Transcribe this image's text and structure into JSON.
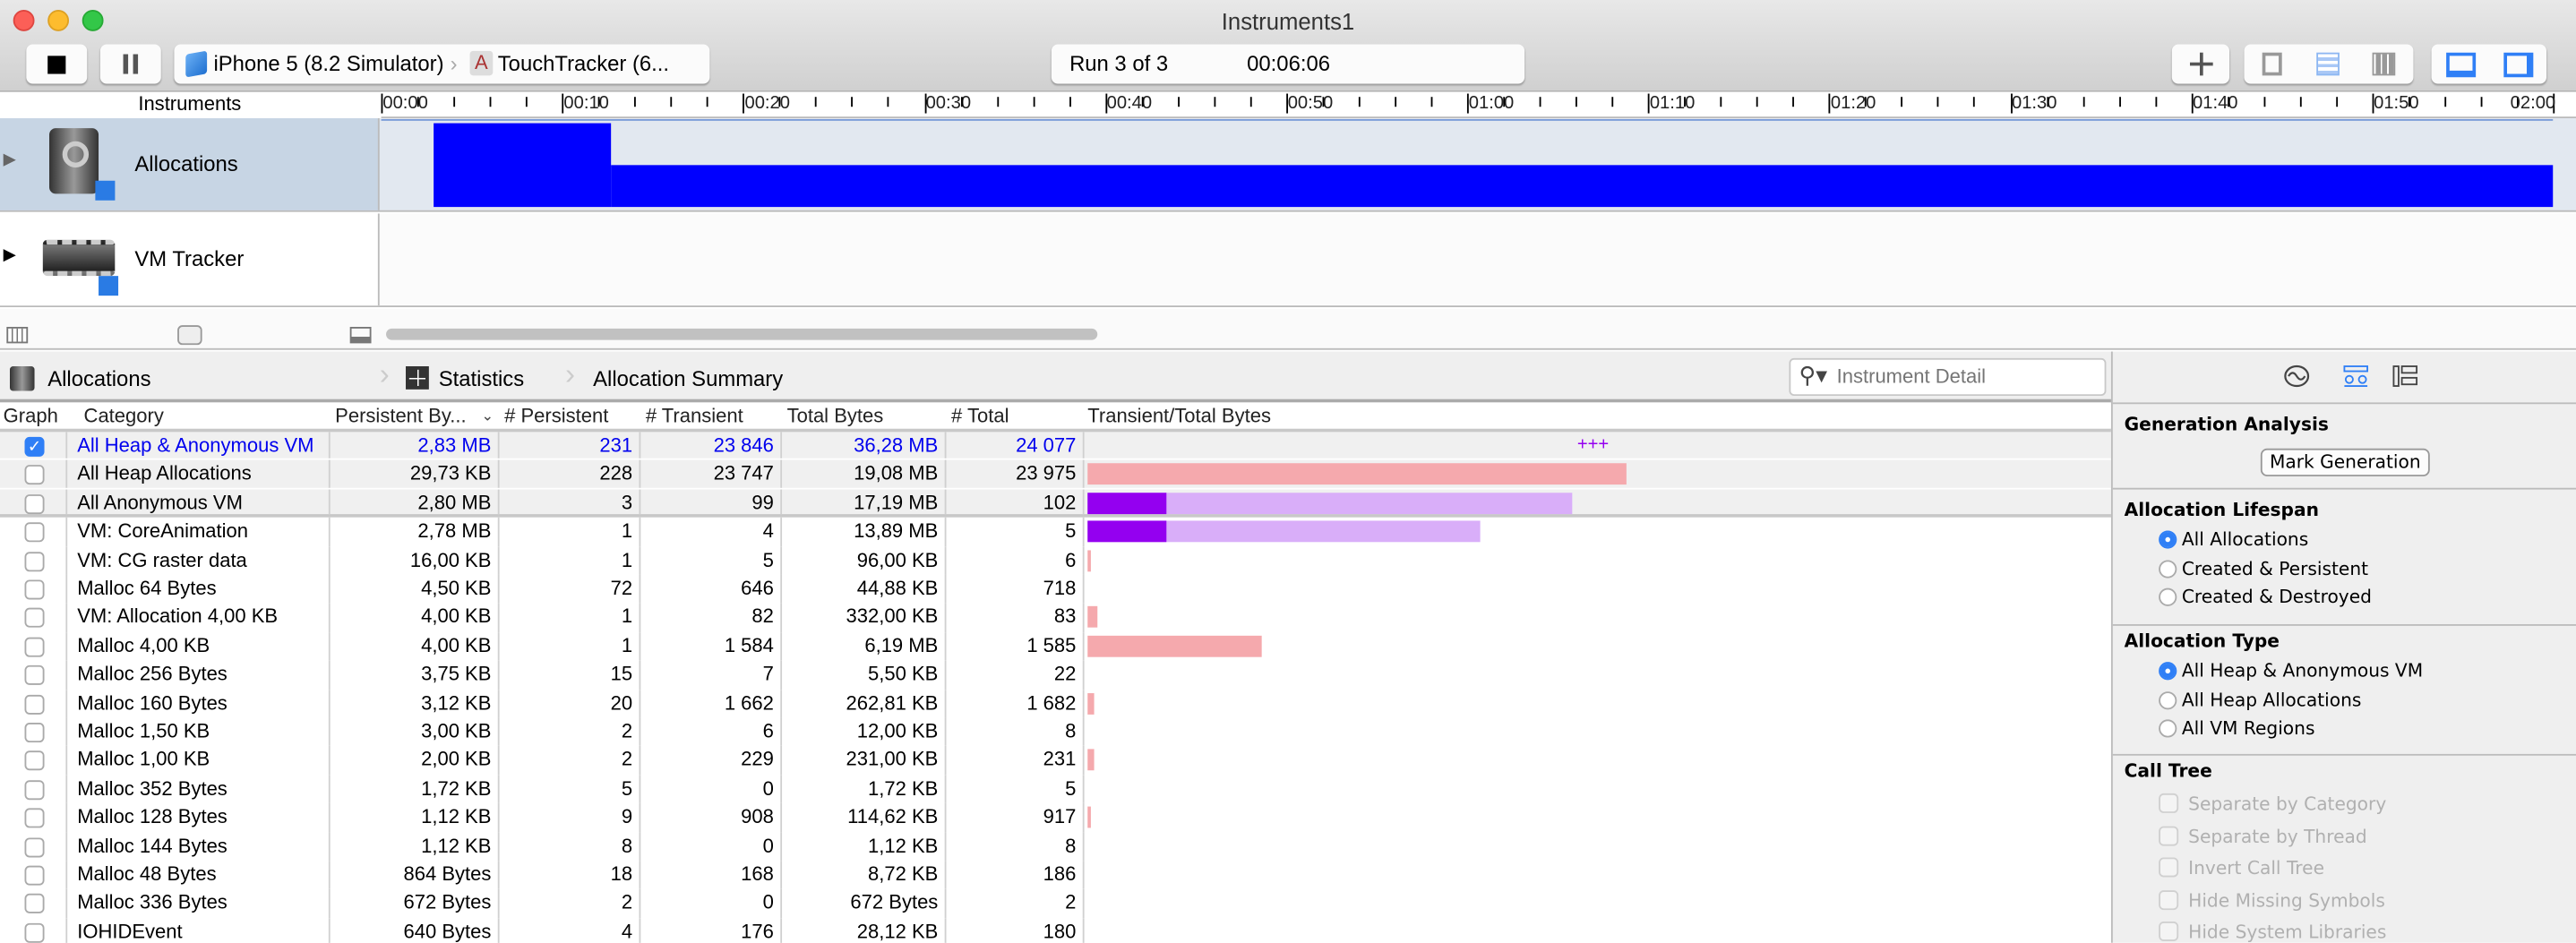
{
  "window": {
    "title": "Instruments1"
  },
  "toolbar": {
    "stop_icon": "stop-icon",
    "pause_icon": "pause-icon",
    "device": "iPhone 5 (8.2 Simulator)",
    "target": "TouchTracker (6...",
    "run_label": "Run 3 of 3",
    "elapsed": "00:06:06",
    "add_icon": "plus-icon"
  },
  "timeline": {
    "header": "Instruments",
    "ticks": [
      "00:00",
      "00:10",
      "00:20",
      "00:30",
      "00:40",
      "00:50",
      "01:00",
      "01:10",
      "01:20",
      "01:30",
      "01:40",
      "01:50",
      "02:00"
    ],
    "tracks": [
      {
        "name": "Allocations",
        "selected": true
      },
      {
        "name": "VM Tracker",
        "selected": false
      }
    ],
    "allocations_graph": {
      "unit": "seconds",
      "segments": [
        {
          "start": 2.9,
          "end": 12.7,
          "level": 1.0
        },
        {
          "start": 12.7,
          "end": 120,
          "level": 0.5
        }
      ],
      "color": "#0000ff"
    }
  },
  "detail": {
    "breadcrumb": [
      "Allocations",
      "Statistics",
      "Allocation Summary"
    ],
    "search_placeholder": "Instrument Detail",
    "columns": [
      "Graph",
      "Category",
      "Persistent By...",
      "# Persistent",
      "# Transient",
      "Total Bytes",
      "# Total",
      "Transient/Total Bytes"
    ],
    "overflow_marker": "+++",
    "colors": {
      "heap": "#f5a9ad",
      "vm_persistent": "#9400f0",
      "vm_total": "#d9aef9",
      "selected_text": "#0000ee"
    },
    "rows": [
      {
        "checked": true,
        "category": "All Heap & Anonymous VM",
        "persistent_bytes": "2,83 MB",
        "persistent": "231",
        "transient": "23 846",
        "total_bytes": "36,28 MB",
        "total": "24 077",
        "bar": {
          "kind": "overflow"
        }
      },
      {
        "checked": false,
        "category": "All Heap Allocations",
        "persistent_bytes": "29,73 KB",
        "persistent": "228",
        "transient": "23 747",
        "total_bytes": "19,08 MB",
        "total": "23 975",
        "bar": {
          "kind": "heap",
          "total_mb": 19.08,
          "persistent_mb": 0.03
        }
      },
      {
        "checked": false,
        "category": "All Anonymous VM",
        "persistent_bytes": "2,80 MB",
        "persistent": "3",
        "transient": "99",
        "total_bytes": "17,19 MB",
        "total": "102",
        "bar": {
          "kind": "vm",
          "total_mb": 17.19,
          "persistent_mb": 2.8
        }
      },
      {
        "checked": false,
        "category": "VM: CoreAnimation",
        "persistent_bytes": "2,78 MB",
        "persistent": "1",
        "transient": "4",
        "total_bytes": "13,89 MB",
        "total": "5",
        "bar": {
          "kind": "vm",
          "total_mb": 13.89,
          "persistent_mb": 2.78
        }
      },
      {
        "checked": false,
        "category": "VM: CG raster data",
        "persistent_bytes": "16,00 KB",
        "persistent": "1",
        "transient": "5",
        "total_bytes": "96,00 KB",
        "total": "6",
        "bar": {
          "kind": "heap",
          "total_mb": 0.094,
          "persistent_mb": 0.016
        }
      },
      {
        "checked": false,
        "category": "Malloc 64 Bytes",
        "persistent_bytes": "4,50 KB",
        "persistent": "72",
        "transient": "646",
        "total_bytes": "44,88 KB",
        "total": "718",
        "bar": {
          "kind": "none"
        }
      },
      {
        "checked": false,
        "category": "VM: Allocation 4,00 KB",
        "persistent_bytes": "4,00 KB",
        "persistent": "1",
        "transient": "82",
        "total_bytes": "332,00 KB",
        "total": "83",
        "bar": {
          "kind": "heap",
          "total_mb": 0.324,
          "persistent_mb": 0.004
        }
      },
      {
        "checked": false,
        "category": "Malloc 4,00 KB",
        "persistent_bytes": "4,00 KB",
        "persistent": "1",
        "transient": "1 584",
        "total_bytes": "6,19 MB",
        "total": "1 585",
        "bar": {
          "kind": "heap",
          "total_mb": 6.19,
          "persistent_mb": 0.004
        }
      },
      {
        "checked": false,
        "category": "Malloc 256 Bytes",
        "persistent_bytes": "3,75 KB",
        "persistent": "15",
        "transient": "7",
        "total_bytes": "5,50 KB",
        "total": "22",
        "bar": {
          "kind": "none"
        }
      },
      {
        "checked": false,
        "category": "Malloc 160 Bytes",
        "persistent_bytes": "3,12 KB",
        "persistent": "20",
        "transient": "1 662",
        "total_bytes": "262,81 KB",
        "total": "1 682",
        "bar": {
          "kind": "heap",
          "total_mb": 0.257,
          "persistent_mb": 0.003
        }
      },
      {
        "checked": false,
        "category": "Malloc 1,50 KB",
        "persistent_bytes": "3,00 KB",
        "persistent": "2",
        "transient": "6",
        "total_bytes": "12,00 KB",
        "total": "8",
        "bar": {
          "kind": "none"
        }
      },
      {
        "checked": false,
        "category": "Malloc 1,00 KB",
        "persistent_bytes": "2,00 KB",
        "persistent": "2",
        "transient": "229",
        "total_bytes": "231,00 KB",
        "total": "231",
        "bar": {
          "kind": "heap",
          "total_mb": 0.226,
          "persistent_mb": 0.002
        }
      },
      {
        "checked": false,
        "category": "Malloc 352 Bytes",
        "persistent_bytes": "1,72 KB",
        "persistent": "5",
        "transient": "0",
        "total_bytes": "1,72 KB",
        "total": "5",
        "bar": {
          "kind": "none"
        }
      },
      {
        "checked": false,
        "category": "Malloc 128 Bytes",
        "persistent_bytes": "1,12 KB",
        "persistent": "9",
        "transient": "908",
        "total_bytes": "114,62 KB",
        "total": "917",
        "bar": {
          "kind": "heap",
          "total_mb": 0.112,
          "persistent_mb": 0.001
        }
      },
      {
        "checked": false,
        "category": "Malloc 144 Bytes",
        "persistent_bytes": "1,12 KB",
        "persistent": "8",
        "transient": "0",
        "total_bytes": "1,12 KB",
        "total": "8",
        "bar": {
          "kind": "none"
        }
      },
      {
        "checked": false,
        "category": "Malloc 48 Bytes",
        "persistent_bytes": "864 Bytes",
        "persistent": "18",
        "transient": "168",
        "total_bytes": "8,72 KB",
        "total": "186",
        "bar": {
          "kind": "none"
        }
      },
      {
        "checked": false,
        "category": "Malloc 336 Bytes",
        "persistent_bytes": "672 Bytes",
        "persistent": "2",
        "transient": "0",
        "total_bytes": "672 Bytes",
        "total": "2",
        "bar": {
          "kind": "none"
        }
      },
      {
        "checked": false,
        "category": "IOHIDEvent",
        "persistent_bytes": "640 Bytes",
        "persistent": "4",
        "transient": "176",
        "total_bytes": "28,12 KB",
        "total": "180",
        "bar": {
          "kind": "none"
        }
      }
    ]
  },
  "inspector": {
    "tabs": [
      "record-settings-icon",
      "display-settings-icon",
      "extended-detail-icon"
    ],
    "generation": {
      "title": "Generation Analysis",
      "button": "Mark Generation"
    },
    "lifespan": {
      "title": "Allocation Lifespan",
      "options": [
        "All Allocations",
        "Created & Persistent",
        "Created & Destroyed"
      ],
      "selected": 0
    },
    "type": {
      "title": "Allocation Type",
      "options": [
        "All Heap & Anonymous VM",
        "All Heap Allocations",
        "All VM Regions"
      ],
      "selected": 0
    },
    "call_tree": {
      "title": "Call Tree",
      "options": [
        "Separate by Category",
        "Separate by Thread",
        "Invert Call Tree",
        "Hide Missing Symbols",
        "Hide System Libraries"
      ],
      "enabled": false
    }
  }
}
